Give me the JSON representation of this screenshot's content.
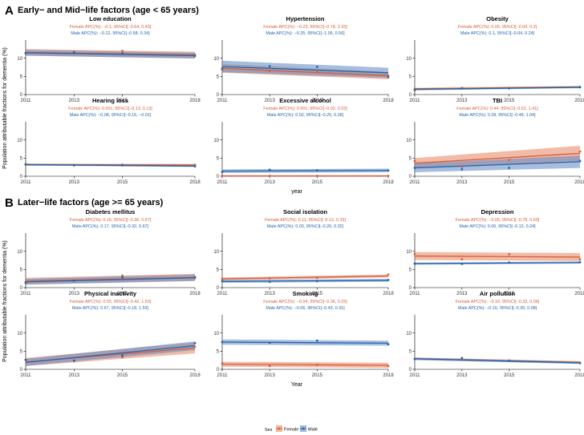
{
  "figure": {
    "sections": [
      {
        "letter": "A",
        "title": "Early− and Mid−life factors (age < 65 years)",
        "xlabel": "year"
      },
      {
        "letter": "B",
        "title": "Later−life factors (age >= 65 years)",
        "xlabel": "Year"
      }
    ],
    "ylabel": "Population attributable fractions for dementia (%)",
    "legend": {
      "title": "Sex",
      "items": [
        {
          "label": "Female",
          "color": "#d55e3a"
        },
        {
          "label": "Male",
          "color": "#2166ac"
        }
      ]
    },
    "colors": {
      "female": "#d55e3a",
      "male": "#2166ac",
      "female_band": "#e8845f",
      "male_band": "#5f87c2",
      "overlap": "#8a6e8e"
    }
  },
  "chart_data": [
    {
      "type": "line",
      "panel": "Low education",
      "x": [
        2011,
        2013,
        2015,
        2018
      ],
      "ylim": [
        0,
        15
      ],
      "yticks": [
        0,
        5,
        10
      ],
      "series": [
        {
          "name": "Female",
          "apc": "Female APC(%): −0.1, 95%CI[−0.64, 0.43]",
          "values": [
            11.5,
            11.8,
            12.0,
            11.0
          ],
          "fit": [
            11.6,
            10.9
          ],
          "band": [
            0.9,
            0.9
          ]
        },
        {
          "name": "Male",
          "apc": "Male APC(%): −0.12, 95%CI[−0.58, 0.34]",
          "values": [
            11.4,
            11.6,
            11.3,
            10.6
          ],
          "fit": [
            11.5,
            10.7
          ],
          "band": [
            0.8,
            0.8
          ]
        }
      ]
    },
    {
      "type": "line",
      "panel": "Hypertension",
      "x": [
        2011,
        2013,
        2015,
        2018
      ],
      "ylim": [
        0,
        15
      ],
      "yticks": [
        0,
        5,
        10
      ],
      "series": [
        {
          "name": "Female",
          "apc": "Female APC(%): −0.23, 95%CI[−0.78, 0.33]",
          "values": [
            6.8,
            6.5,
            6.5,
            5.2
          ],
          "fit": [
            7.2,
            5.2
          ],
          "band": [
            1.2,
            1.0
          ]
        },
        {
          "name": "Male",
          "apc": "Male APC(%): −0.25, 95%CI[−1.06, 0.56]",
          "values": [
            7.2,
            7.8,
            7.6,
            4.8
          ],
          "fit": [
            7.7,
            6.0
          ],
          "band": [
            1.6,
            1.4
          ]
        }
      ]
    },
    {
      "type": "line",
      "panel": "Obesity",
      "x": [
        2011,
        2013,
        2015,
        2018
      ],
      "ylim": [
        0,
        15
      ],
      "yticks": [
        0,
        5,
        10
      ],
      "series": [
        {
          "name": "Female",
          "apc": "Female APC(%): 0.05, 95%CI[−0.09, 0.2]",
          "values": [
            1.6,
            1.8,
            1.8,
            2.1
          ],
          "fit": [
            1.6,
            2.1
          ],
          "band": [
            0.25,
            0.25
          ]
        },
        {
          "name": "Male",
          "apc": "Male APC(%): 0.1, 95%CI[−0.04, 0.24]",
          "values": [
            1.2,
            1.7,
            1.7,
            2.0
          ],
          "fit": [
            1.4,
            2.0
          ],
          "band": [
            0.25,
            0.25
          ]
        }
      ]
    },
    {
      "type": "line",
      "panel": "Hearing loss",
      "x": [
        2011,
        2013,
        2015,
        2018
      ],
      "ylim": [
        0,
        15
      ],
      "yticks": [
        0,
        5,
        10
      ],
      "series": [
        {
          "name": "Female",
          "apc": "Female APC(%): 0.001, 95%CI[−0.13, 0.13]",
          "values": [
            3.2,
            3.1,
            3.2,
            3.2
          ],
          "fit": [
            3.2,
            3.1
          ],
          "band": [
            0.3,
            0.3
          ]
        },
        {
          "name": "Male",
          "apc": "Male APC(%): −0.08, 95%CI[−0.15, −0.01]",
          "values": [
            3.3,
            3.0,
            3.0,
            2.7
          ],
          "fit": [
            3.2,
            2.8
          ],
          "band": [
            0.25,
            0.25
          ]
        }
      ]
    },
    {
      "type": "line",
      "panel": "Excessive alcohol",
      "x": [
        2011,
        2013,
        2015,
        2018
      ],
      "ylim": [
        0,
        15
      ],
      "yticks": [
        0,
        5,
        10
      ],
      "series": [
        {
          "name": "Female",
          "apc": "Female APC(%): 0.001, 95%CI[−0.02, 0.03]",
          "values": [
            0.1,
            0.1,
            0.1,
            0.1
          ],
          "fit": [
            0.1,
            0.1
          ],
          "band": [
            0.1,
            0.1
          ]
        },
        {
          "name": "Male",
          "apc": "Male APC(%): 0.02, 95%CI[−0.25, 0.28]",
          "values": [
            1.2,
            1.8,
            1.6,
            1.6
          ],
          "fit": [
            1.4,
            1.6
          ],
          "band": [
            0.5,
            0.5
          ]
        }
      ]
    },
    {
      "type": "line",
      "panel": "TBI",
      "x": [
        2011,
        2013,
        2015,
        2018
      ],
      "ylim": [
        0,
        15
      ],
      "yticks": [
        0,
        5,
        10
      ],
      "series": [
        {
          "name": "Female",
          "apc": "Female APC(%): 0.44, 95%CI[−0.52, 1.41]",
          "values": [
            4.2,
            2.6,
            4.5,
            6.8
          ],
          "fit": [
            3.6,
            6.3
          ],
          "band": [
            1.4,
            2.1
          ]
        },
        {
          "name": "Male",
          "apc": "Male APC(%): 0.28, 95%CI[−0.48, 1.04]",
          "values": [
            2.3,
            1.9,
            2.3,
            4.2
          ],
          "fit": [
            2.3,
            4.0
          ],
          "band": [
            1.2,
            1.7
          ]
        }
      ]
    },
    {
      "type": "line",
      "panel": "Diabetes mellitus",
      "x": [
        2011,
        2013,
        2015,
        2018
      ],
      "ylim": [
        0,
        15
      ],
      "yticks": [
        0,
        5,
        10
      ],
      "series": [
        {
          "name": "Female",
          "apc": "Female APC(%): 0.16, 95%CI[−0.36, 0.67]",
          "values": [
            1.6,
            1.9,
            3.3,
            2.6
          ],
          "fit": [
            1.8,
            2.8
          ],
          "band": [
            0.9,
            1.0
          ]
        },
        {
          "name": "Male",
          "apc": "Male APC(%): 0.17, 95%CI[−0.32, 0.67]",
          "values": [
            1.3,
            1.9,
            2.8,
            2.9
          ],
          "fit": [
            1.6,
            2.7
          ],
          "band": [
            0.8,
            0.9
          ]
        }
      ]
    },
    {
      "type": "line",
      "panel": "Social isolation",
      "x": [
        2011,
        2013,
        2015,
        2018
      ],
      "ylim": [
        0,
        15
      ],
      "yticks": [
        0,
        5,
        10
      ],
      "series": [
        {
          "name": "Female",
          "apc": "Female APC(%): 0.11, 95%CI[−0.12, 0.33]",
          "values": [
            2.4,
            2.6,
            2.7,
            3.6
          ],
          "fit": [
            2.4,
            3.2
          ],
          "band": [
            0.4,
            0.4
          ]
        },
        {
          "name": "Male",
          "apc": "Male APC(%): 0.03, 95%CI[−0.26, 0.32]",
          "values": [
            1.8,
            1.6,
            1.8,
            2.1
          ],
          "fit": [
            1.7,
            2.0
          ],
          "band": [
            0.4,
            0.4
          ]
        }
      ]
    },
    {
      "type": "line",
      "panel": "Depression",
      "x": [
        2011,
        2013,
        2015,
        2018
      ],
      "ylim": [
        0,
        15
      ],
      "yticks": [
        0,
        5,
        10
      ],
      "series": [
        {
          "name": "Female",
          "apc": "Female APC(%): −0.05, 95%CI[−0.78, 0.69]",
          "values": [
            9.3,
            7.8,
            9.2,
            7.8
          ],
          "fit": [
            8.7,
            8.4
          ],
          "band": [
            1.1,
            1.1
          ]
        },
        {
          "name": "Male",
          "apc": "Male APC(%): 0.06, 95%CI[−0.12, 0.24]",
          "values": [
            6.6,
            6.5,
            6.9,
            7.0
          ],
          "fit": [
            6.6,
            6.9
          ],
          "band": [
            0.3,
            0.3
          ]
        }
      ]
    },
    {
      "type": "line",
      "panel": "Physical inactivity",
      "x": [
        2011,
        2013,
        2015,
        2018
      ],
      "ylim": [
        0,
        15
      ],
      "yticks": [
        0,
        5,
        10
      ],
      "series": [
        {
          "name": "Female",
          "apc": "Female APC(%): 0.55, 95%CI[−0.42, 1.53]",
          "values": [
            2.6,
            2.3,
            3.3,
            6.2
          ],
          "fit": [
            2.0,
            5.9
          ],
          "band": [
            1.1,
            1.5
          ]
        },
        {
          "name": "Male",
          "apc": "Male APC(%): 0.67, 95%CI[−0.18, 1.53]",
          "values": [
            2.6,
            2.4,
            3.8,
            7.2
          ],
          "fit": [
            1.9,
            6.5
          ],
          "band": [
            1.0,
            1.2
          ]
        }
      ]
    },
    {
      "type": "line",
      "panel": "Smoking",
      "x": [
        2011,
        2013,
        2015,
        2018
      ],
      "ylim": [
        0,
        15
      ],
      "yticks": [
        0,
        5,
        10
      ],
      "series": [
        {
          "name": "Female",
          "apc": "Female APC(%): −0.04, 95%CI[−0.36, 0.29]",
          "values": [
            1.6,
            0.9,
            1.2,
            0.9
          ],
          "fit": [
            1.4,
            1.1
          ],
          "band": [
            0.7,
            0.7
          ]
        },
        {
          "name": "Male",
          "apc": "Male APC(%): −0.06, 95%CI[−0.43, 0.31]",
          "values": [
            7.5,
            7.3,
            7.9,
            6.9
          ],
          "fit": [
            7.5,
            7.2
          ],
          "band": [
            0.7,
            0.7
          ]
        }
      ]
    },
    {
      "type": "line",
      "panel": "Air pollution",
      "x": [
        2011,
        2013,
        2015,
        2018
      ],
      "ylim": [
        0,
        15
      ],
      "yticks": [
        0,
        5,
        10
      ],
      "series": [
        {
          "name": "Female",
          "apc": "Female APC(%): −0.16, 95%CI[−0.33, 0.04]",
          "values": [
            2.9,
            2.9,
            2.4,
            1.8
          ],
          "fit": [
            2.9,
            1.9
          ],
          "band": [
            0.35,
            0.35
          ]
        },
        {
          "name": "Male",
          "apc": "Male APC(%): −0.16, 95%CI[−0.39, 0.08]",
          "values": [
            2.8,
            3.1,
            2.4,
            1.7
          ],
          "fit": [
            2.9,
            1.8
          ],
          "band": [
            0.35,
            0.35
          ]
        }
      ]
    }
  ]
}
